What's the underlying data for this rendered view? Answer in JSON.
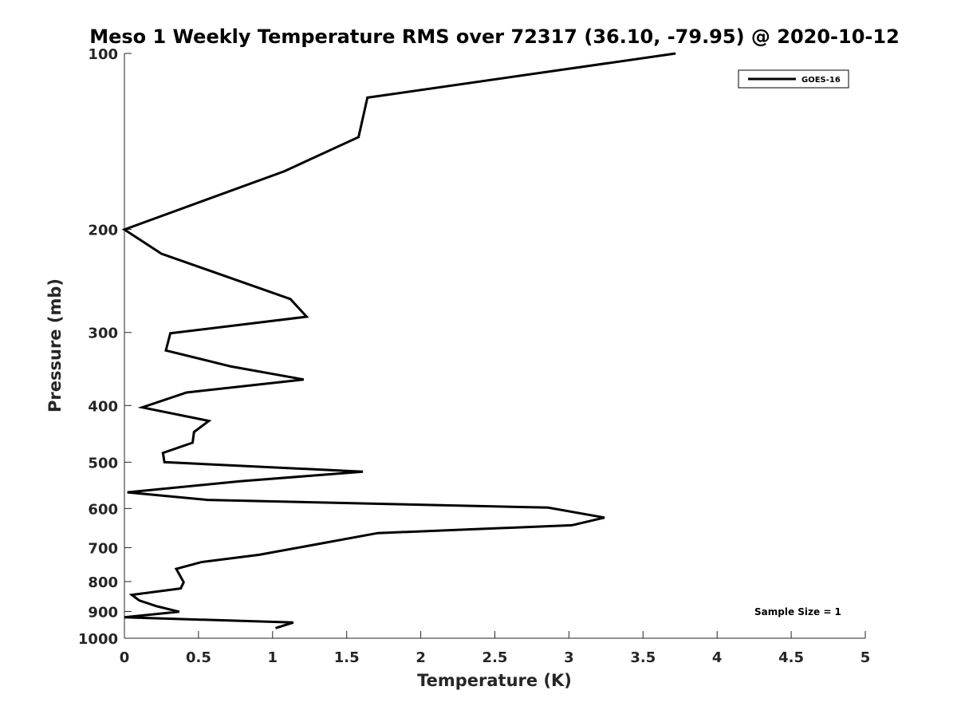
{
  "chart_data": {
    "type": "line",
    "title": "Meso 1 Weekly Temperature RMS over 72317 (36.10, -79.95) @ 2020-10-12",
    "xlabel": "Temperature (K)",
    "ylabel": "Pressure (mb)",
    "xlim": [
      0,
      5
    ],
    "ylim": [
      100,
      1000
    ],
    "y_scale": "log",
    "y_reversed": true,
    "grid": false,
    "legend_position": "top-right",
    "x_ticks": [
      "0",
      "0.5",
      "1",
      "1.5",
      "2",
      "2.5",
      "3",
      "3.5",
      "4",
      "4.5",
      "5"
    ],
    "y_ticks": [
      "100",
      "200",
      "300",
      "400",
      "500",
      "600",
      "700",
      "800",
      "900",
      "1000"
    ],
    "series": [
      {
        "name": "GOES-16",
        "color": "#000000",
        "points": [
          {
            "t": 3.72,
            "p": 100
          },
          {
            "t": 1.64,
            "p": 119
          },
          {
            "t": 1.58,
            "p": 139
          },
          {
            "t": 1.08,
            "p": 159
          },
          {
            "t": 0.0,
            "p": 200
          },
          {
            "t": 0.25,
            "p": 220
          },
          {
            "t": 1.12,
            "p": 263
          },
          {
            "t": 1.23,
            "p": 282
          },
          {
            "t": 0.31,
            "p": 301
          },
          {
            "t": 0.28,
            "p": 322
          },
          {
            "t": 0.72,
            "p": 343
          },
          {
            "t": 1.21,
            "p": 361
          },
          {
            "t": 0.42,
            "p": 380
          },
          {
            "t": 0.12,
            "p": 403
          },
          {
            "t": 0.57,
            "p": 425
          },
          {
            "t": 0.47,
            "p": 444
          },
          {
            "t": 0.46,
            "p": 463
          },
          {
            "t": 0.26,
            "p": 482
          },
          {
            "t": 0.27,
            "p": 500
          },
          {
            "t": 1.61,
            "p": 519
          },
          {
            "t": 0.78,
            "p": 539
          },
          {
            "t": 0.02,
            "p": 563
          },
          {
            "t": 0.56,
            "p": 580
          },
          {
            "t": 2.86,
            "p": 598
          },
          {
            "t": 3.24,
            "p": 622
          },
          {
            "t": 3.02,
            "p": 641
          },
          {
            "t": 1.71,
            "p": 661
          },
          {
            "t": 0.91,
            "p": 720
          },
          {
            "t": 0.52,
            "p": 741
          },
          {
            "t": 0.35,
            "p": 761
          },
          {
            "t": 0.4,
            "p": 802
          },
          {
            "t": 0.38,
            "p": 822
          },
          {
            "t": 0.05,
            "p": 843
          },
          {
            "t": 0.1,
            "p": 862
          },
          {
            "t": 0.22,
            "p": 882
          },
          {
            "t": 0.37,
            "p": 901
          },
          {
            "t": 0.0,
            "p": 921
          },
          {
            "t": 1.14,
            "p": 940
          },
          {
            "t": 1.02,
            "p": 961
          }
        ]
      }
    ],
    "annotations": [
      "Sample Size = 1"
    ]
  }
}
